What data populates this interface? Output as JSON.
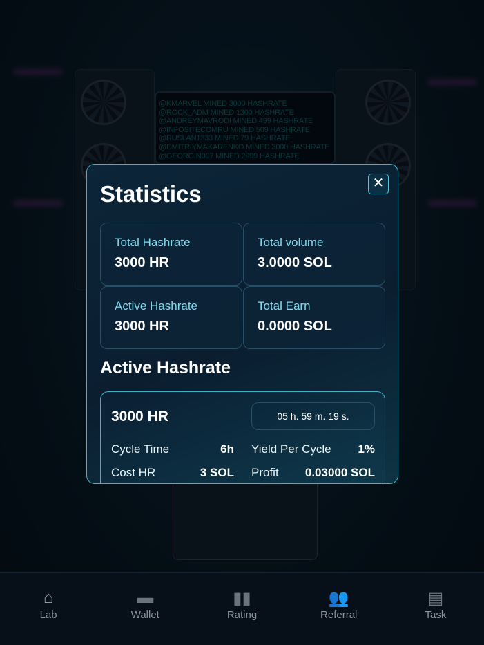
{
  "ticker": [
    "@KMARVEL MINED 3000 HASHRATE",
    "@ROCK_ADM MINED 1300 HASHRATE",
    "@ANDREYMAVRODI MINED 499 HASHRATE",
    "@INFOSITECOMRU MINED 509 HASHRATE",
    "@RUSLAN1333 MINED 79 HASHRATE",
    "@DMITRIYMAKARENKO MINED 3000 HASHRATE",
    "@GEORGIN007 MINED 2999 HASHRATE"
  ],
  "modal": {
    "title": "Statistics",
    "close": "✕",
    "cards": [
      {
        "label": "Total Hashrate",
        "value": "3000 HR"
      },
      {
        "label": "Total volume",
        "value": "3.0000 SOL"
      },
      {
        "label": "Active Hashrate",
        "value": "3000 HR"
      },
      {
        "label": "Total Earn",
        "value": "0.0000 SOL"
      }
    ],
    "section_title": "Active Hashrate",
    "active": {
      "hashrate": "3000 HR",
      "timer": "05 h. 59 m. 19 s.",
      "cycle_time_label": "Cycle Time",
      "cycle_time": "6h",
      "yield_label": "Yield Per Cycle",
      "yield": "1%",
      "cost_label": "Cost HR",
      "cost": "3 SOL",
      "profit_label": "Profit",
      "profit": "0.03000 SOL"
    }
  },
  "nav": [
    {
      "label": "Lab",
      "icon": "home-icon",
      "glyph": "⌂"
    },
    {
      "label": "Wallet",
      "icon": "wallet-icon",
      "glyph": "▬"
    },
    {
      "label": "Rating",
      "icon": "bar-chart-icon",
      "glyph": "▮▮"
    },
    {
      "label": "Referral",
      "icon": "users-icon",
      "glyph": "👥"
    },
    {
      "label": "Task",
      "icon": "clipboard-icon",
      "glyph": "▤"
    }
  ]
}
